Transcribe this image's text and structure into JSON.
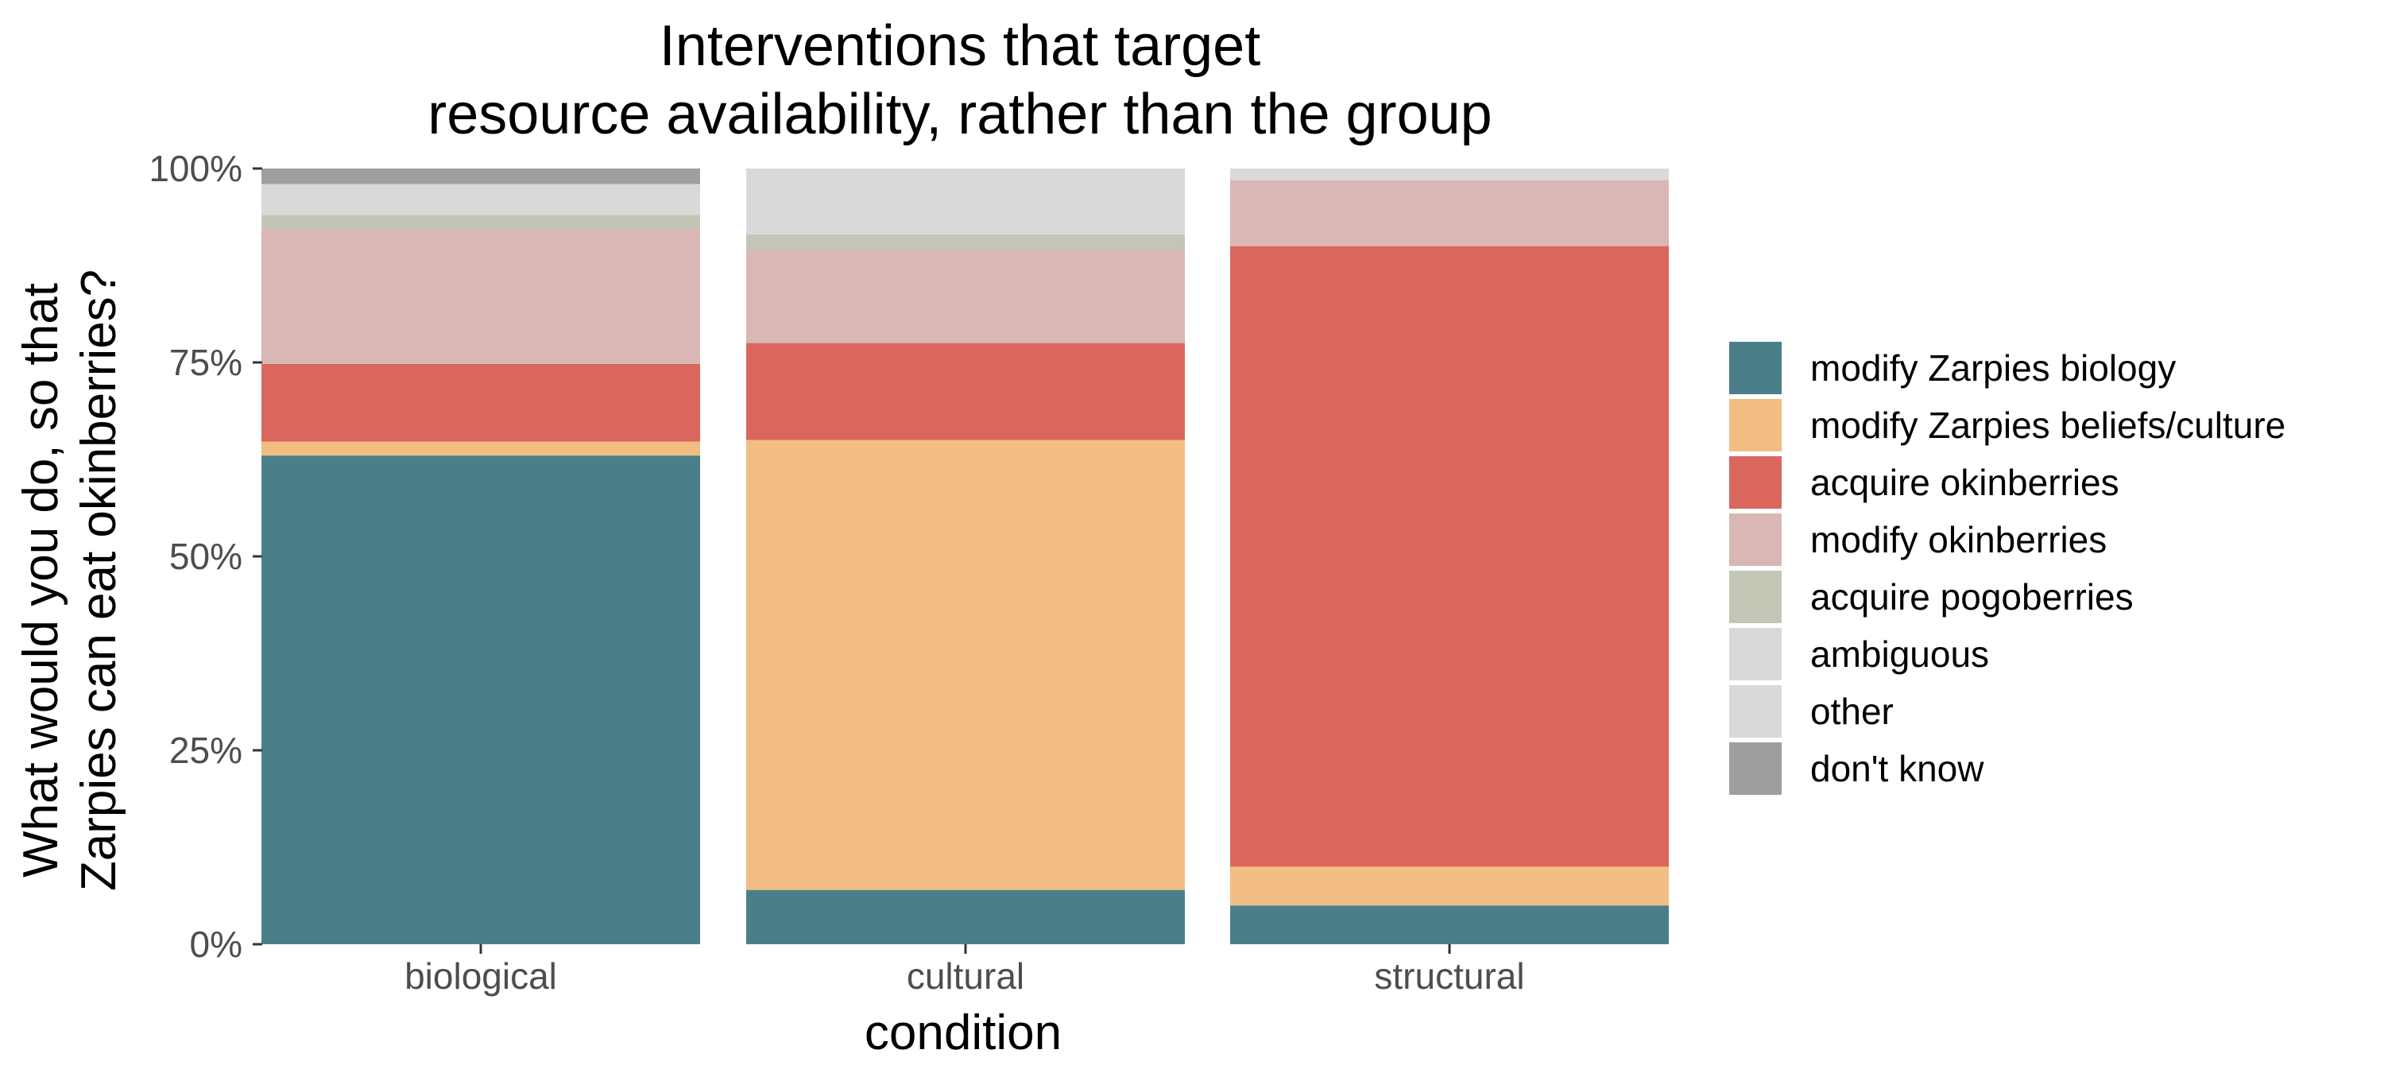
{
  "chart_data": {
    "type": "bar",
    "stacked": true,
    "normalized": true,
    "title_lines": [
      "Interventions that target",
      "resource availability, rather than the group"
    ],
    "xlabel": "condition",
    "ylabel_lines": [
      "What would you do, so that",
      "Zarpies can eat okinberries?"
    ],
    "ylim": [
      0,
      1
    ],
    "y_ticks": [
      "0%",
      "25%",
      "50%",
      "75%",
      "100%"
    ],
    "categories": [
      "biological",
      "cultural",
      "structural"
    ],
    "grid": false,
    "legend_position": "right",
    "series": [
      {
        "name": "modify Zarpies biology",
        "color": "#4a7f8a",
        "values": [
          0.63,
          0.07,
          0.05
        ]
      },
      {
        "name": "modify Zarpies beliefs/culture",
        "color": "#f2bd82",
        "values": [
          0.018,
          0.58,
          0.05
        ]
      },
      {
        "name": "acquire okinberries",
        "color": "#d9675d",
        "values": [
          0.1,
          0.125,
          0.8
        ]
      },
      {
        "name": "modify okinberries",
        "color": "#d9b7b5",
        "values": [
          0.175,
          0.12,
          0.085
        ]
      },
      {
        "name": "acquire pogoberries",
        "color": "#c2c7b5",
        "values": [
          0.017,
          0.02,
          0.0
        ]
      },
      {
        "name": "ambiguous",
        "color": "#d9d9d9",
        "values": [
          0.04,
          0.085,
          0.015
        ]
      },
      {
        "name": "other",
        "color": "#d9d9d9",
        "values": [
          0.0,
          0.0,
          0.0
        ]
      },
      {
        "name": "don't know",
        "color": "#9e9e9e",
        "values": [
          0.02,
          0.0,
          0.0
        ]
      }
    ]
  }
}
